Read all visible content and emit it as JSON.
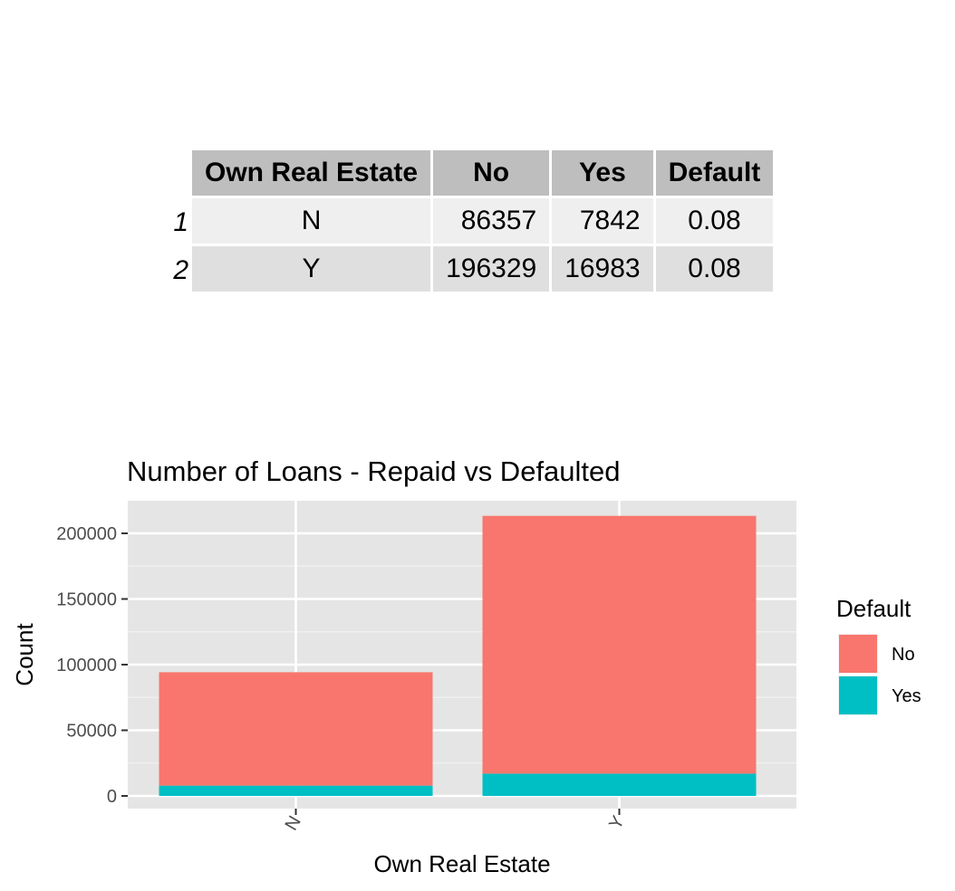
{
  "table": {
    "columns": [
      "Own Real Estate",
      "No",
      "Yes",
      "Default"
    ],
    "rows": [
      {
        "rowname": "1",
        "cells": [
          "N",
          "86357",
          "7842",
          "0.08"
        ]
      },
      {
        "rowname": "2",
        "cells": [
          "Y",
          "196329",
          "16983",
          "0.08"
        ]
      }
    ]
  },
  "chart_data": {
    "type": "bar",
    "stacked": true,
    "title": "Number of Loans - Repaid vs Defaulted",
    "xlabel": "Own Real Estate",
    "ylabel": "Count",
    "categories": [
      "N",
      "Y"
    ],
    "series": [
      {
        "name": "No",
        "values": [
          86357,
          196329
        ],
        "color": "#F8766D"
      },
      {
        "name": "Yes",
        "values": [
          7842,
          16983
        ],
        "color": "#00BFC4"
      }
    ],
    "stack_order_bottom_to_top": [
      "Yes",
      "No"
    ],
    "ylim": [
      -9000,
      225000
    ],
    "yticks": [
      0,
      50000,
      100000,
      150000,
      200000
    ],
    "ytick_labels": [
      "0",
      "50000",
      "100000",
      "150000",
      "200000"
    ],
    "legend": {
      "title": "Default",
      "position": "right"
    },
    "grid": true,
    "panel_background": "#E5E5E5",
    "x_tick_rotation_deg": 60
  }
}
